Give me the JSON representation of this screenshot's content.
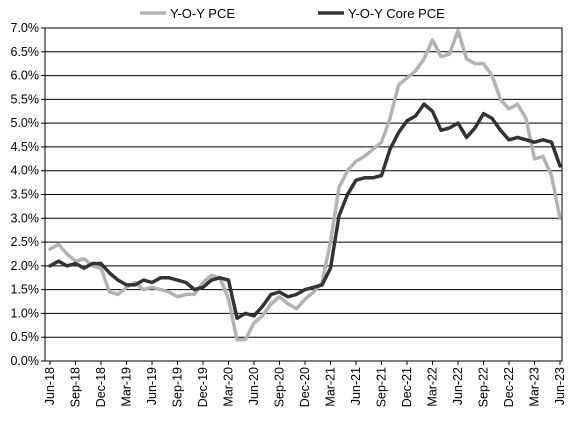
{
  "chart_data": {
    "type": "line",
    "title": "",
    "xlabel": "",
    "ylabel": "",
    "ylim": [
      0,
      7
    ],
    "y_ticks": [
      "0.0%",
      "0.5%",
      "1.0%",
      "1.5%",
      "2.0%",
      "2.5%",
      "3.0%",
      "3.5%",
      "4.0%",
      "4.5%",
      "5.0%",
      "5.5%",
      "6.0%",
      "6.5%",
      "7.0%"
    ],
    "x_ticks": [
      "Jun-18",
      "Sep-18",
      "Dec-18",
      "Mar-19",
      "Jun-19",
      "Sep-19",
      "Dec-19",
      "Mar-20",
      "Jun-20",
      "Sep-20",
      "Dec-20",
      "Mar-21",
      "Jun-21",
      "Sep-21",
      "Dec-21",
      "Mar-22",
      "Jun-22",
      "Sep-22",
      "Dec-22",
      "Mar-23",
      "Jun-23"
    ],
    "grid": "horizontal",
    "legend_position": "top",
    "x": [
      "Jun-18",
      "Jul-18",
      "Aug-18",
      "Sep-18",
      "Oct-18",
      "Nov-18",
      "Dec-18",
      "Jan-19",
      "Feb-19",
      "Mar-19",
      "Apr-19",
      "May-19",
      "Jun-19",
      "Jul-19",
      "Aug-19",
      "Sep-19",
      "Oct-19",
      "Nov-19",
      "Dec-19",
      "Jan-20",
      "Feb-20",
      "Mar-20",
      "Apr-20",
      "May-20",
      "Jun-20",
      "Jul-20",
      "Aug-20",
      "Sep-20",
      "Oct-20",
      "Nov-20",
      "Dec-20",
      "Jan-21",
      "Feb-21",
      "Mar-21",
      "Apr-21",
      "May-21",
      "Jun-21",
      "Jul-21",
      "Aug-21",
      "Sep-21",
      "Oct-21",
      "Nov-21",
      "Dec-21",
      "Jan-22",
      "Feb-22",
      "Mar-22",
      "Apr-22",
      "May-22",
      "Jun-22",
      "Jul-22",
      "Aug-22",
      "Sep-22",
      "Oct-22",
      "Nov-22",
      "Dec-22",
      "Jan-23",
      "Feb-23",
      "Mar-23",
      "Apr-23",
      "May-23",
      "Jun-23"
    ],
    "series": [
      {
        "name": "Y-O-Y PCE",
        "color": "#b3b3b3",
        "values": [
          2.35,
          2.45,
          2.25,
          2.1,
          2.15,
          2.0,
          1.95,
          1.45,
          1.4,
          1.55,
          1.65,
          1.5,
          1.55,
          1.5,
          1.45,
          1.35,
          1.4,
          1.4,
          1.65,
          1.8,
          1.75,
          1.3,
          0.45,
          0.45,
          0.8,
          0.95,
          1.2,
          1.35,
          1.2,
          1.1,
          1.3,
          1.45,
          1.65,
          2.5,
          3.65,
          4.0,
          4.2,
          4.3,
          4.45,
          4.6,
          5.1,
          5.8,
          5.95,
          6.1,
          6.35,
          6.75,
          6.4,
          6.45,
          6.95,
          6.35,
          6.25,
          6.25,
          6.0,
          5.5,
          5.3,
          5.4,
          5.1,
          4.25,
          4.3,
          3.9,
          3.0
        ]
      },
      {
        "name": "Y-O-Y Core PCE",
        "color": "#333333",
        "values": [
          2.0,
          2.1,
          2.0,
          2.05,
          1.95,
          2.05,
          2.05,
          1.85,
          1.7,
          1.6,
          1.6,
          1.7,
          1.65,
          1.75,
          1.75,
          1.7,
          1.65,
          1.5,
          1.55,
          1.7,
          1.75,
          1.7,
          0.9,
          1.0,
          0.95,
          1.15,
          1.4,
          1.45,
          1.35,
          1.4,
          1.5,
          1.55,
          1.6,
          1.95,
          3.05,
          3.5,
          3.8,
          3.85,
          3.85,
          3.9,
          4.45,
          4.8,
          5.05,
          5.15,
          5.4,
          5.25,
          4.85,
          4.9,
          5.0,
          4.7,
          4.9,
          5.2,
          5.1,
          4.85,
          4.65,
          4.7,
          4.65,
          4.6,
          4.65,
          4.6,
          4.1
        ]
      }
    ]
  }
}
